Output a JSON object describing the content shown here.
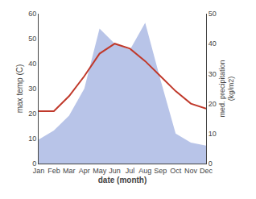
{
  "chart_data": {
    "type": "line",
    "categories": [
      "Jan",
      "Feb",
      "Mar",
      "Apr",
      "May",
      "Jun",
      "Jul",
      "Aug",
      "Sep",
      "Oct",
      "Nov",
      "Dec"
    ],
    "series": [
      {
        "type": "line",
        "color": "#c0392b",
        "values": [
          21,
          21,
          27,
          35,
          44,
          48,
          46,
          41,
          35,
          29,
          24,
          22
        ]
      },
      {
        "type": "area",
        "axis": "y2",
        "color": "#b8c4e8",
        "values": [
          8,
          11,
          16,
          25,
          45,
          40,
          38,
          47,
          28,
          10,
          7,
          6
        ]
      }
    ],
    "x_label": "date (month)",
    "y_label": "max temp (C)",
    "y2_label": "med. precipitation\n(kg/m2)",
    "ylim": [
      0,
      60
    ],
    "yticks": [
      0,
      10,
      20,
      30,
      40,
      50,
      60
    ],
    "y2lim": [
      0,
      50
    ],
    "y2ticks": [
      0,
      10,
      20,
      30,
      40,
      50
    ],
    "grid": false
  }
}
